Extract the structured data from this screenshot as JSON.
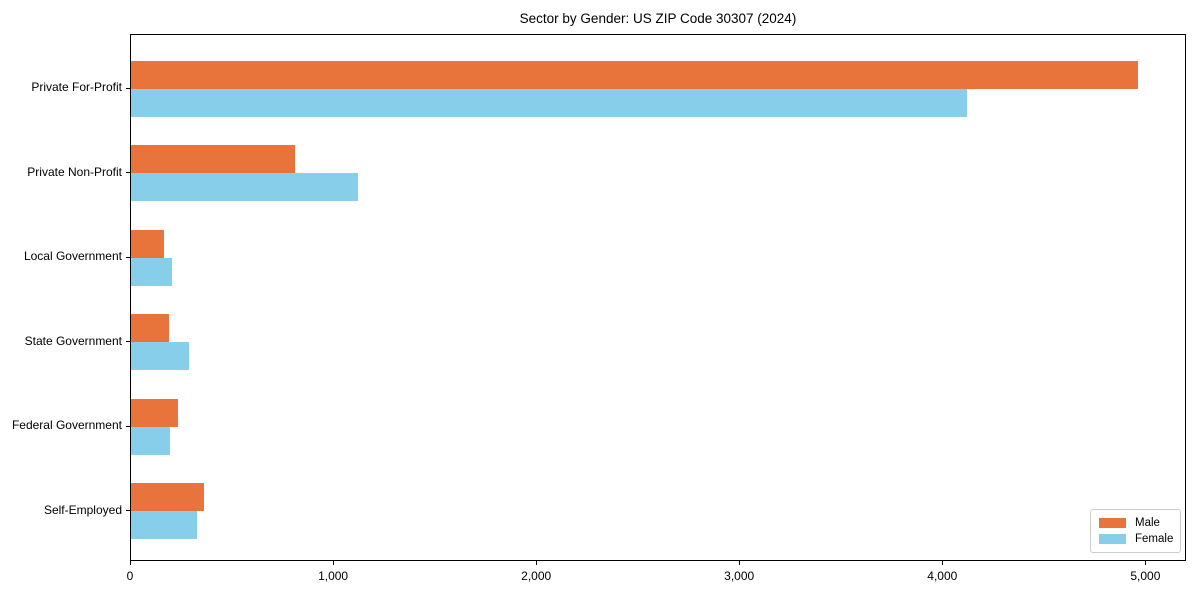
{
  "chart_data": {
    "type": "bar",
    "orientation": "horizontal",
    "title": "Sector by Gender: US ZIP Code 30307 (2024)",
    "categories": [
      "Private For-Profit",
      "Private Non-Profit",
      "Local Government",
      "State Government",
      "Federal Government",
      "Self-Employed"
    ],
    "series": [
      {
        "name": "Male",
        "color": "#E8743C",
        "values": [
          4960,
          805,
          160,
          185,
          230,
          360
        ]
      },
      {
        "name": "Female",
        "color": "#87CEEB",
        "values": [
          4115,
          1120,
          200,
          285,
          190,
          325
        ]
      }
    ],
    "xlabel": "",
    "ylabel": "",
    "xlim": [
      0,
      5200
    ],
    "xticks": [
      {
        "value": 0,
        "label": "0"
      },
      {
        "value": 1000,
        "label": "1,000"
      },
      {
        "value": 2000,
        "label": "2,000"
      },
      {
        "value": 3000,
        "label": "3,000"
      },
      {
        "value": 4000,
        "label": "4,000"
      },
      {
        "value": 5000,
        "label": "5,000"
      }
    ],
    "grid": false,
    "legend_position": "lower right",
    "text_color": "#000000",
    "axis_color": "#000000",
    "background": "#ffffff"
  }
}
